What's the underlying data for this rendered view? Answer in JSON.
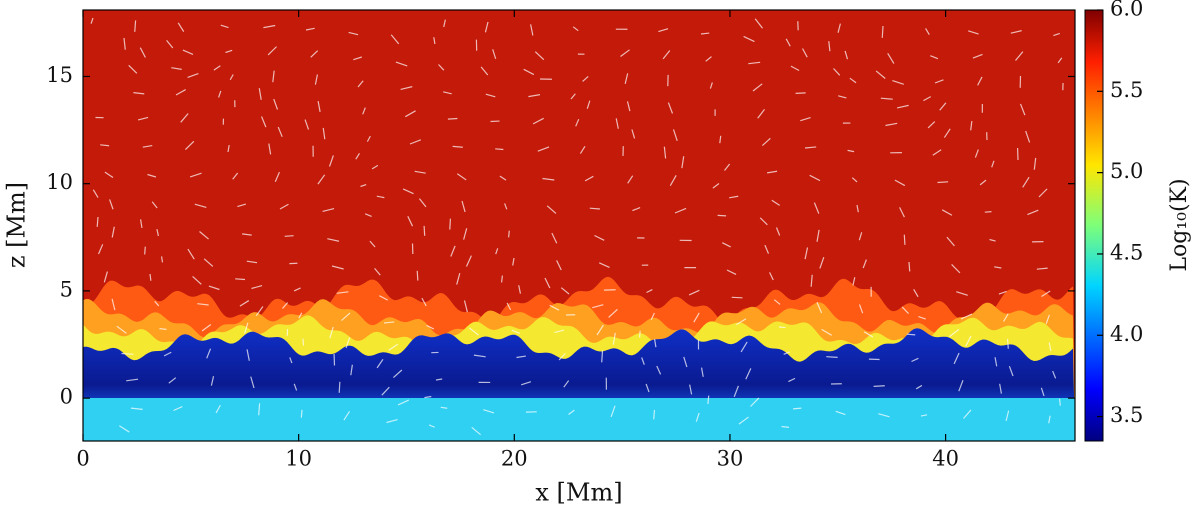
{
  "chart_data": {
    "type": "heatmap",
    "xlabel": "x [Mm]",
    "ylabel": "z [Mm]",
    "xlim": [
      0,
      46
    ],
    "ylim": [
      -2,
      18.1
    ],
    "xticks": [
      0,
      10,
      20,
      30,
      40
    ],
    "yticks": [
      0,
      5,
      10,
      15
    ],
    "colorbar": {
      "label": "Log₁₀(K)",
      "colormap": "jet",
      "clim": [
        3.35,
        6.0
      ],
      "ticks": [
        {
          "value": 3.5,
          "label": "3.5"
        },
        {
          "value": 4,
          "label": "4.0"
        },
        {
          "value": 4.5,
          "label": "4.5"
        },
        {
          "value": 5,
          "label": "5.0"
        },
        {
          "value": 5.5,
          "label": "5.5"
        },
        {
          "value": 6,
          "label": "6.0"
        }
      ]
    }
  }
}
